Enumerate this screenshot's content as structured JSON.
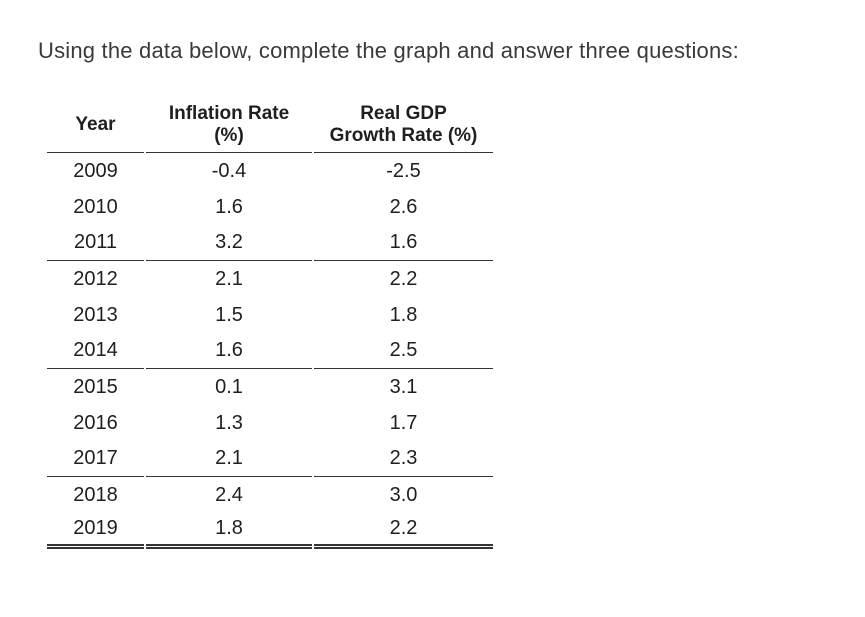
{
  "title": "Using the data below, complete the graph and answer three questions:",
  "colors": {
    "background": "#ffffff",
    "title_text": "#3a3a3a",
    "table_text": "#1f1f1f",
    "rule": "#333333"
  },
  "table": {
    "headers": [
      {
        "label": "Year",
        "lines": [
          "Year"
        ]
      },
      {
        "label": "Inflation Rate (%)",
        "lines": [
          "Inflation Rate",
          "(%)"
        ]
      },
      {
        "label": "Real GDP Growth Rate (%)",
        "lines": [
          "Real GDP",
          "Growth Rate (%)"
        ]
      }
    ],
    "rows": [
      {
        "year": "2009",
        "inflation": "-0.4",
        "gdp": "-2.5"
      },
      {
        "year": "2010",
        "inflation": "1.6",
        "gdp": "2.6"
      },
      {
        "year": "2011",
        "inflation": "3.2",
        "gdp": "1.6"
      },
      {
        "year": "2012",
        "inflation": "2.1",
        "gdp": "2.2"
      },
      {
        "year": "2013",
        "inflation": "1.5",
        "gdp": "1.8"
      },
      {
        "year": "2014",
        "inflation": "1.6",
        "gdp": "2.5"
      },
      {
        "year": "2015",
        "inflation": "0.1",
        "gdp": "3.1"
      },
      {
        "year": "2016",
        "inflation": "1.3",
        "gdp": "1.7"
      },
      {
        "year": "2017",
        "inflation": "2.1",
        "gdp": "2.3"
      },
      {
        "year": "2018",
        "inflation": "2.4",
        "gdp": "3.0"
      },
      {
        "year": "2019",
        "inflation": "1.8",
        "gdp": "2.2"
      }
    ]
  },
  "chart_data": {
    "type": "table",
    "title": "Using the data below, complete the graph and answer three questions:",
    "columns": [
      "Year",
      "Inflation Rate (%)",
      "Real GDP Growth Rate (%)"
    ],
    "x": [
      2009,
      2010,
      2011,
      2012,
      2013,
      2014,
      2015,
      2016,
      2017,
      2018,
      2019
    ],
    "series": [
      {
        "name": "Inflation Rate (%)",
        "values": [
          -0.4,
          1.6,
          3.2,
          2.1,
          1.5,
          1.6,
          0.1,
          1.3,
          2.1,
          2.4,
          1.8
        ]
      },
      {
        "name": "Real GDP Growth Rate (%)",
        "values": [
          -2.5,
          2.6,
          1.6,
          2.2,
          1.8,
          2.5,
          3.1,
          1.7,
          2.3,
          3.0,
          2.2
        ]
      }
    ]
  }
}
